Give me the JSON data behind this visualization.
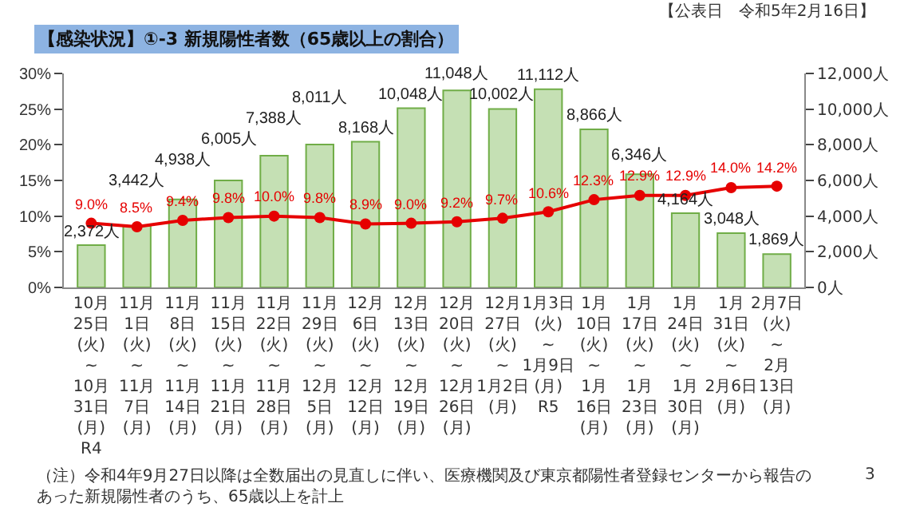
{
  "chart_data": {
    "type": "bar",
    "title": "【感染状況】①-3 新規陽性者数（65歳以上の割合）",
    "annotations": [
      "【公表日　令和5年2月16日】",
      "（注）令和4年9月27日以降は全数届出の見直しに伴い、医療機関及び東京都陽性者登録センターから報告のあった新規陽性者のうち、65歳以上を計上",
      "3"
    ],
    "categories": [
      "10月25日\n(火)\n~\n10月31日\n(月)\nR4",
      "11月1日\n(火)\n~\n11月7日\n(月)",
      "11月8日\n(火)\n~\n11月14日\n(月)",
      "11月15日\n(火)\n~\n11月21日\n(月)",
      "11月22日\n(火)\n~\n11月28日\n(月)",
      "11月29日\n(火)\n~\n12月5日\n(月)",
      "12月6日\n(火)\n~\n12月12日\n(月)",
      "12月13日\n(火)\n~\n12月19日\n(月)",
      "12月20日\n(火)\n~\n12月26日\n(月)",
      "12月27日\n(火)\n~\n1月2日\n(月)",
      "1月3日\n(火)\n~\n1月9日\n(月)\nR5",
      "1月10日\n(火)\n~\n1月16日\n(月)",
      "1月17日\n(火)\n~\n1月23日\n(月)",
      "1月24日\n(火)\n~\n1月30日\n(月)",
      "1月31日\n(火)\n~\n2月6日\n(月)",
      "2月7日\n(火)\n~\n2月13日\n(月)"
    ],
    "series": [
      {
        "axis": "y2",
        "color": "#c5e0b4",
        "values": [
          2372,
          3442,
          4938,
          6005,
          7388,
          8011,
          8168,
          10048,
          11048,
          10002,
          11112,
          8866,
          6346,
          4164,
          3048,
          1869
        ],
        "value_labels": [
          "2,372人",
          "3,442人",
          "4,938人",
          "6,005人",
          "7,388人",
          "8,011人",
          "8,168人",
          "10,048人",
          "11,048人",
          "10,002人",
          "11,112人",
          "8,866人",
          "6,346人",
          "4,164人",
          "3,048人",
          "1,869人"
        ]
      },
      {
        "type": "line",
        "color": "#e60000",
        "values": [
          9.0,
          8.5,
          9.4,
          9.8,
          10.0,
          9.8,
          8.9,
          9.0,
          9.2,
          9.7,
          10.6,
          12.3,
          12.9,
          12.9,
          14.0,
          14.2
        ],
        "value_labels": [
          "9.0%",
          "8.5%",
          "9.4%",
          "9.8%",
          "10.0%",
          "9.8%",
          "8.9%",
          "9.0%",
          "9.2%",
          "9.7%",
          "10.6%",
          "12.3%",
          "12.9%",
          "12.9%",
          "14.0%",
          "14.2%"
        ]
      }
    ],
    "ylim": [
      0,
      30
    ],
    "yticks": [
      {
        "value": 0,
        "label": "0%"
      },
      {
        "value": 5,
        "label": "5%"
      },
      {
        "value": 10,
        "label": "10%"
      },
      {
        "value": 15,
        "label": "15%"
      },
      {
        "value": 20,
        "label": "20%"
      },
      {
        "value": 25,
        "label": "25%"
      },
      {
        "value": 30,
        "label": "30%"
      }
    ],
    "y2lim": [
      0,
      12000
    ],
    "y2ticks": [
      {
        "value": 0,
        "label": "0人"
      },
      {
        "value": 2000,
        "label": "2,000人"
      },
      {
        "value": 4000,
        "label": "4,000人"
      },
      {
        "value": 6000,
        "label": "6,000人"
      },
      {
        "value": 8000,
        "label": "8,000人"
      },
      {
        "value": 10000,
        "label": "10,000人"
      },
      {
        "value": 12000,
        "label": "12,000人"
      }
    ],
    "marker": "circle",
    "line_style": "solid",
    "legend": false
  }
}
